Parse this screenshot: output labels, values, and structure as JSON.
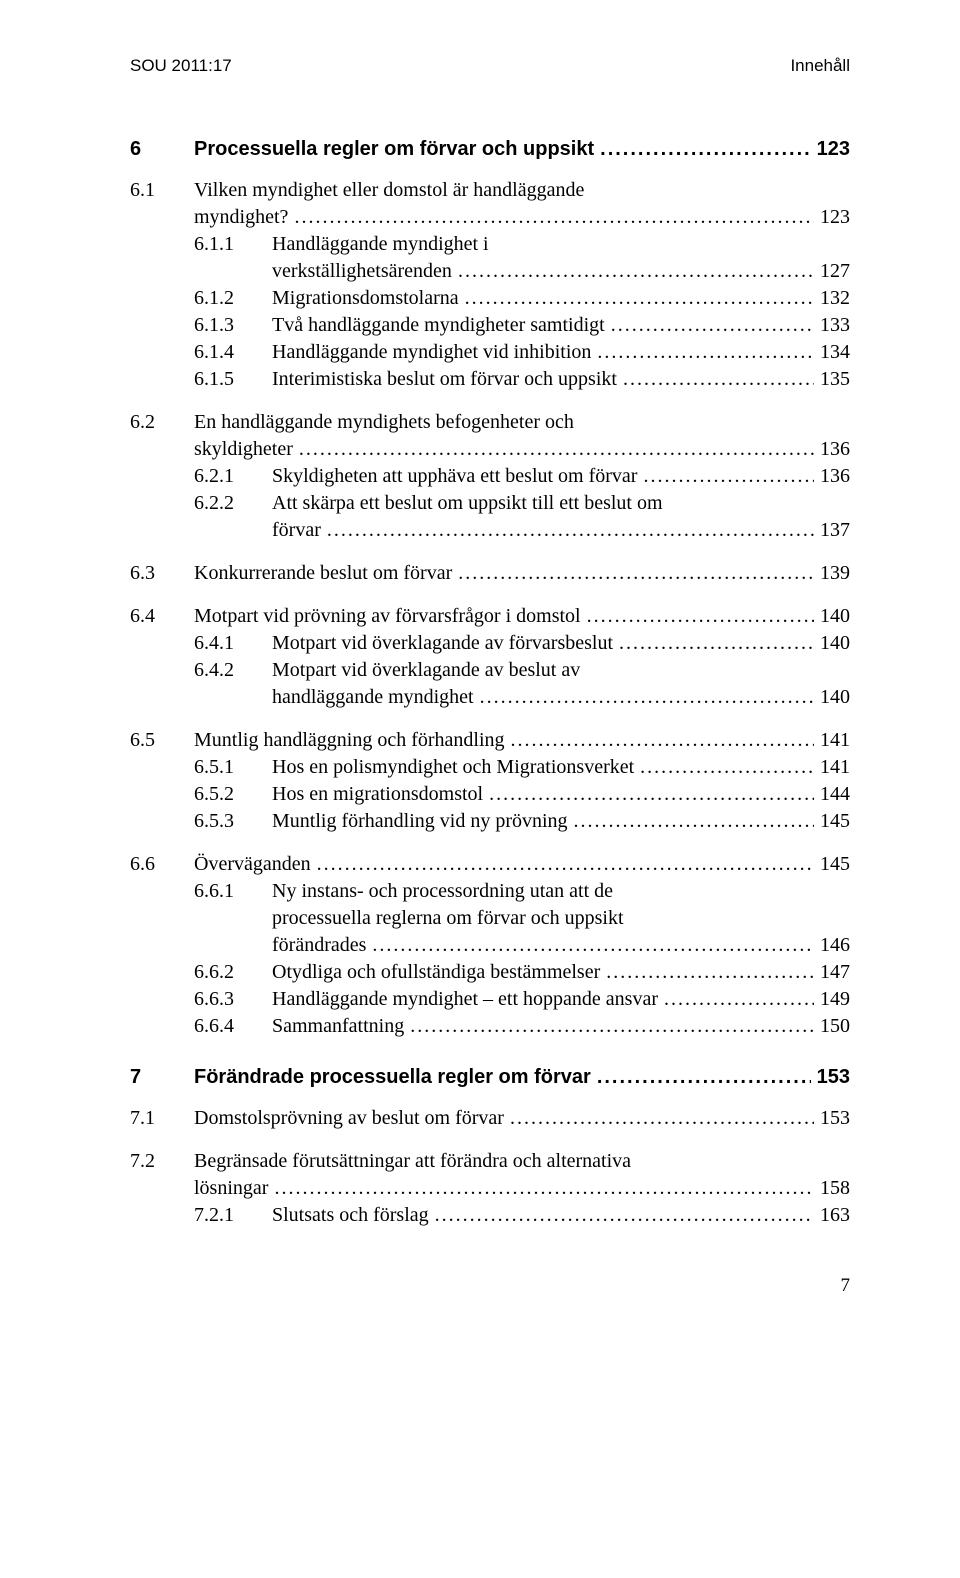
{
  "running_head": {
    "left": "SOU 2011:17",
    "right": "Innehåll"
  },
  "page_number": "7",
  "leader_char": ".",
  "chapters": [
    {
      "num": "6",
      "title": "Processuella regler om förvar och uppsikt",
      "page": "123",
      "bold": true,
      "groups": [
        {
          "entries": [
            {
              "level": 1,
              "num": "6.1",
              "title_lines": [
                "Vilken myndighet eller domstol är handläggande",
                "myndighet?"
              ],
              "page": "123"
            },
            {
              "level": 2,
              "num": "6.1.1",
              "title_lines": [
                "Handläggande myndighet i",
                "verkställighetsärenden"
              ],
              "page": "127"
            },
            {
              "level": 2,
              "num": "6.1.2",
              "title_lines": [
                "Migrationsdomstolarna"
              ],
              "page": "132"
            },
            {
              "level": 2,
              "num": "6.1.3",
              "title_lines": [
                "Två handläggande myndigheter samtidigt"
              ],
              "page": "133"
            },
            {
              "level": 2,
              "num": "6.1.4",
              "title_lines": [
                "Handläggande myndighet vid inhibition"
              ],
              "page": "134"
            },
            {
              "level": 2,
              "num": "6.1.5",
              "title_lines": [
                "Interimistiska beslut om förvar och uppsikt"
              ],
              "page": "135"
            }
          ]
        },
        {
          "entries": [
            {
              "level": 1,
              "num": "6.2",
              "title_lines": [
                "En handläggande myndighets befogenheter och",
                "skyldigheter"
              ],
              "page": "136"
            },
            {
              "level": 2,
              "num": "6.2.1",
              "title_lines": [
                "Skyldigheten att upphäva ett beslut om förvar"
              ],
              "page": "136"
            },
            {
              "level": 2,
              "num": "6.2.2",
              "title_lines": [
                "Att skärpa ett beslut om uppsikt till ett beslut om",
                "förvar"
              ],
              "page": "137"
            }
          ]
        },
        {
          "entries": [
            {
              "level": 1,
              "num": "6.3",
              "title_lines": [
                "Konkurrerande beslut om förvar"
              ],
              "page": "139"
            }
          ]
        },
        {
          "entries": [
            {
              "level": 1,
              "num": "6.4",
              "title_lines": [
                "Motpart vid prövning av förvarsfrågor i domstol"
              ],
              "page": "140"
            },
            {
              "level": 2,
              "num": "6.4.1",
              "title_lines": [
                "Motpart vid överklagande av förvarsbeslut"
              ],
              "page": "140"
            },
            {
              "level": 2,
              "num": "6.4.2",
              "title_lines": [
                "Motpart vid överklagande av beslut av",
                "handläggande myndighet"
              ],
              "page": "140"
            }
          ]
        },
        {
          "entries": [
            {
              "level": 1,
              "num": "6.5",
              "title_lines": [
                "Muntlig handläggning och förhandling"
              ],
              "page": "141"
            },
            {
              "level": 2,
              "num": "6.5.1",
              "title_lines": [
                "Hos en polismyndighet och Migrationsverket"
              ],
              "page": "141"
            },
            {
              "level": 2,
              "num": "6.5.2",
              "title_lines": [
                "Hos en migrationsdomstol"
              ],
              "page": "144"
            },
            {
              "level": 2,
              "num": "6.5.3",
              "title_lines": [
                "Muntlig förhandling vid ny prövning"
              ],
              "page": "145"
            }
          ]
        },
        {
          "entries": [
            {
              "level": 1,
              "num": "6.6",
              "title_lines": [
                "Överväganden"
              ],
              "page": "145"
            },
            {
              "level": 2,
              "num": "6.6.1",
              "title_lines": [
                "Ny instans- och processordning utan att de",
                "processuella reglerna om förvar och uppsikt",
                "förändrades"
              ],
              "page": "146"
            },
            {
              "level": 2,
              "num": "6.6.2",
              "title_lines": [
                "Otydliga och ofullständiga bestämmelser"
              ],
              "page": "147"
            },
            {
              "level": 2,
              "num": "6.6.3",
              "title_lines": [
                "Handläggande myndighet – ett hoppande ansvar"
              ],
              "page": "149"
            },
            {
              "level": 2,
              "num": "6.6.4",
              "title_lines": [
                "Sammanfattning"
              ],
              "page": "150"
            }
          ]
        }
      ]
    },
    {
      "num": "7",
      "title": "Förändrade processuella regler om förvar",
      "page": "153",
      "bold": true,
      "groups": [
        {
          "entries": [
            {
              "level": 1,
              "num": "7.1",
              "title_lines": [
                "Domstolsprövning av beslut om förvar"
              ],
              "page": "153"
            }
          ]
        },
        {
          "entries": [
            {
              "level": 1,
              "num": "7.2",
              "title_lines": [
                "Begränsade förutsättningar att förändra och alternativa",
                "lösningar"
              ],
              "page": "158"
            },
            {
              "level": 2,
              "num": "7.2.1",
              "title_lines": [
                "Slutsats och förslag"
              ],
              "page": "163"
            }
          ]
        }
      ]
    }
  ]
}
